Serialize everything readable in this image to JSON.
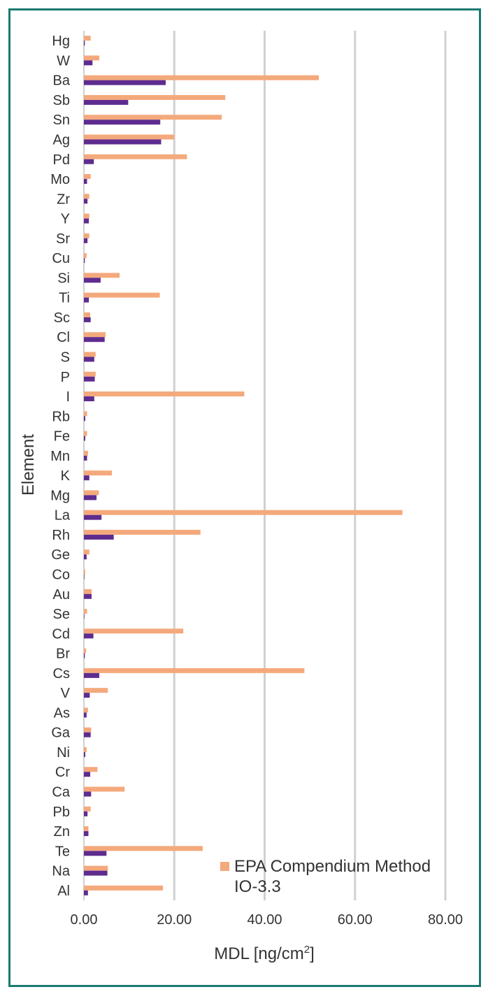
{
  "chart_data": {
    "type": "bar",
    "orientation": "horizontal",
    "ylabel": "Element",
    "xlabel_main": "MDL [ng/cm",
    "xlabel_sup": "2",
    "xlabel_close": "]",
    "xlim": [
      0,
      80
    ],
    "xticks": [
      "0.00",
      "20.00",
      "40.00",
      "60.00",
      "80.00"
    ],
    "grid": "vertical",
    "legend_position": "bottom-right",
    "categories": [
      "Hg",
      "W",
      "Ba",
      "Sb",
      "Sn",
      "Ag",
      "Pd",
      "Mo",
      "Zr",
      "Y",
      "Sr",
      "Cu",
      "Si",
      "Ti",
      "Sc",
      "Cl",
      "S",
      "P",
      "I",
      "Rb",
      "Fe",
      "Mn",
      "K",
      "Mg",
      "La",
      "Rh",
      "Ge",
      "Co",
      "Au",
      "Se",
      "Cd",
      "Br",
      "Cs",
      "V",
      "As",
      "Ga",
      "Ni",
      "Cr",
      "Ca",
      "Pb",
      "Zn",
      "Te",
      "Na",
      "Al"
    ],
    "series": [
      {
        "name": "EPA Compendium Method IO-3.3",
        "legend_lines": [
          "EPA Compendium Method",
          "IO-3.3"
        ],
        "color": "#f4a97c",
        "values": [
          1.5,
          3.4,
          52.0,
          31.3,
          30.5,
          20.0,
          22.8,
          1.5,
          1.2,
          1.2,
          1.2,
          0.6,
          7.9,
          16.8,
          1.4,
          4.8,
          2.6,
          2.6,
          35.5,
          0.7,
          0.7,
          0.9,
          6.2,
          3.3,
          70.5,
          25.8,
          1.2,
          0.3,
          1.7,
          0.7,
          22.0,
          0.5,
          48.8,
          5.3,
          0.9,
          1.6,
          0.6,
          3.0,
          9.0,
          1.5,
          1.0,
          26.3,
          5.3,
          17.5
        ]
      },
      {
        "name": "",
        "color": "#5e2c8f",
        "values": [
          0.2,
          1.9,
          18.1,
          9.8,
          16.9,
          17.1,
          2.2,
          0.7,
          0.8,
          1.1,
          0.8,
          0.2,
          3.7,
          1.1,
          1.5,
          4.6,
          2.3,
          2.4,
          2.3,
          0.3,
          0.3,
          0.7,
          1.2,
          2.8,
          3.9,
          6.6,
          0.6,
          0.1,
          1.7,
          0.1,
          2.1,
          0.2,
          3.4,
          1.3,
          0.6,
          1.5,
          0.3,
          1.4,
          1.6,
          0.8,
          1.0,
          5.0,
          5.2,
          0.9
        ]
      }
    ]
  }
}
